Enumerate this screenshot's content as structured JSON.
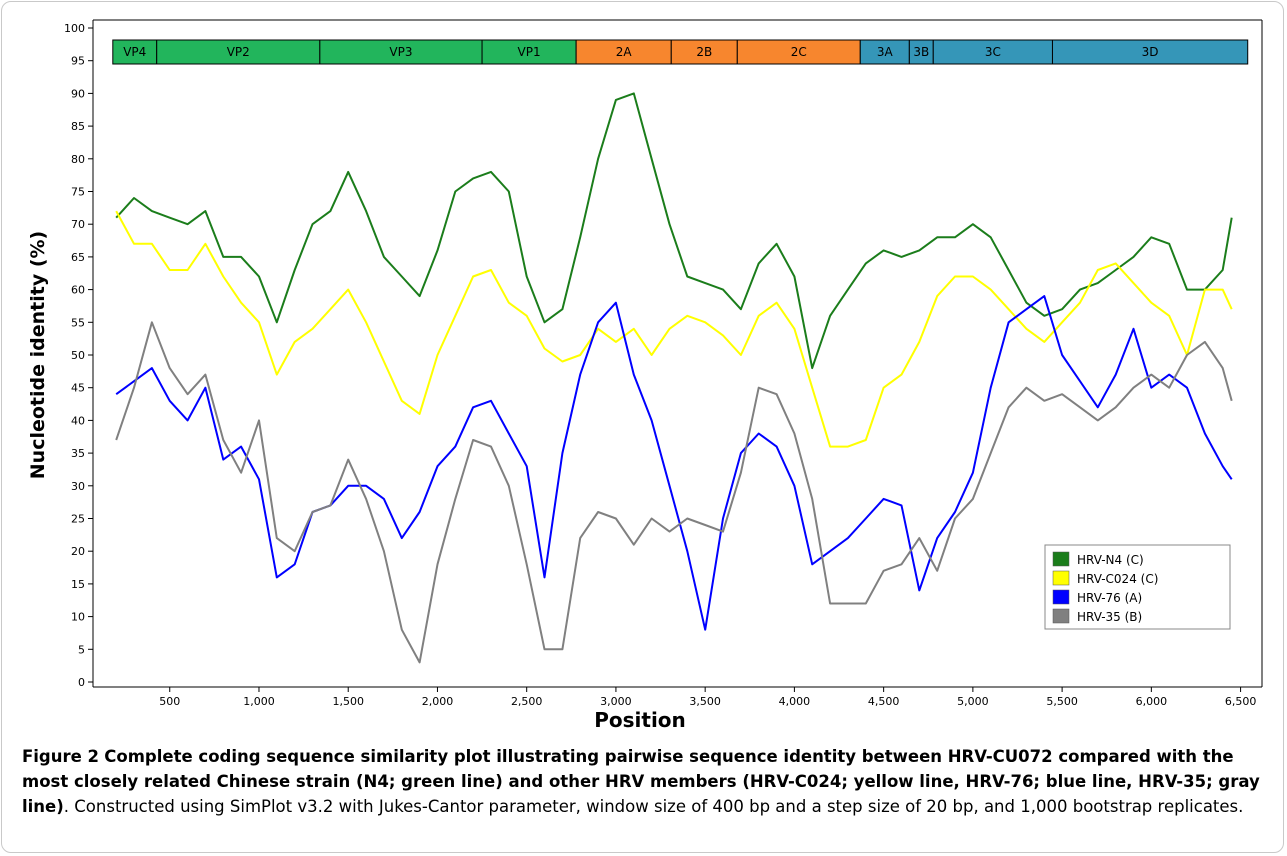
{
  "chart_data": {
    "type": "line",
    "xlabel": "Position",
    "ylabel": "Nucleotide identity (%)",
    "xlim": [
      70,
      6620
    ],
    "ylim": [
      0,
      100
    ],
    "xticks": [
      500,
      {
        "value": 1000,
        "label": "1,000"
      },
      {
        "value": 1500,
        "label": "1,500"
      },
      {
        "value": 2000,
        "label": "2,000"
      },
      {
        "value": 2500,
        "label": "2,500"
      },
      {
        "value": 3000,
        "label": "3,000"
      },
      {
        "value": 3500,
        "label": "3,500"
      },
      {
        "value": 4000,
        "label": "4,000"
      },
      {
        "value": 4500,
        "label": "4,500"
      },
      {
        "value": 5000,
        "label": "5,000"
      },
      {
        "value": 5500,
        "label": "5,500"
      },
      {
        "value": 6000,
        "label": "6,000"
      },
      {
        "value": 6500,
        "label": "6,500"
      }
    ],
    "yticks": [
      0,
      5,
      10,
      15,
      20,
      25,
      30,
      35,
      40,
      45,
      50,
      55,
      60,
      65,
      70,
      75,
      80,
      85,
      90,
      95,
      100
    ],
    "legend": "lower right",
    "regions": [
      {
        "name": "VP4",
        "start": 181,
        "end": 427,
        "color": "#22b55c"
      },
      {
        "name": "VP2",
        "start": 427,
        "end": 1341,
        "color": "#22b55c"
      },
      {
        "name": "VP3",
        "start": 1341,
        "end": 2250,
        "color": "#22b55c"
      },
      {
        "name": "VP1",
        "start": 2250,
        "end": 2777,
        "color": "#22b55c"
      },
      {
        "name": "2A",
        "start": 2777,
        "end": 3310,
        "color": "#f7862e"
      },
      {
        "name": "2B",
        "start": 3310,
        "end": 3680,
        "color": "#f7862e"
      },
      {
        "name": "2C",
        "start": 3680,
        "end": 4369,
        "color": "#f7862e"
      },
      {
        "name": "3A",
        "start": 4369,
        "end": 4644,
        "color": "#3596b8"
      },
      {
        "name": "3B",
        "start": 4644,
        "end": 4778,
        "color": "#3596b8"
      },
      {
        "name": "3C",
        "start": 4778,
        "end": 5446,
        "color": "#3596b8"
      },
      {
        "name": "3D",
        "start": 5446,
        "end": 6540,
        "color": "#3596b8"
      }
    ],
    "x": [
      200,
      300,
      400,
      500,
      600,
      700,
      800,
      900,
      1000,
      1100,
      1200,
      1300,
      1400,
      1500,
      1600,
      1700,
      1800,
      1900,
      2000,
      2100,
      2200,
      2300,
      2400,
      2500,
      2600,
      2700,
      2800,
      2900,
      3000,
      3100,
      3200,
      3300,
      3400,
      3500,
      3600,
      3700,
      3800,
      3900,
      4000,
      4100,
      4200,
      4300,
      4400,
      4500,
      4600,
      4700,
      4800,
      4900,
      5000,
      5100,
      5200,
      5300,
      5400,
      5500,
      5600,
      5700,
      5800,
      5900,
      6000,
      6100,
      6200,
      6300,
      6400,
      6450
    ],
    "series": [
      {
        "name": "HRV-N4 (C)",
        "color": "#1b7d1b",
        "values": [
          71,
          74,
          72,
          71,
          70,
          72,
          65,
          65,
          62,
          55,
          63,
          70,
          72,
          78,
          72,
          65,
          62,
          59,
          66,
          75,
          77,
          78,
          75,
          62,
          55,
          57,
          68,
          80,
          89,
          90,
          80,
          70,
          62,
          61,
          60,
          57,
          64,
          67,
          62,
          48,
          56,
          60,
          64,
          66,
          65,
          66,
          68,
          68,
          70,
          68,
          63,
          58,
          56,
          57,
          60,
          61,
          63,
          65,
          68,
          67,
          60,
          60,
          63,
          71
        ]
      },
      {
        "name": "HRV-C024 (C)",
        "color": "#ffff00",
        "values": [
          72,
          67,
          67,
          63,
          63,
          67,
          62,
          58,
          55,
          47,
          52,
          54,
          57,
          60,
          55,
          49,
          43,
          41,
          50,
          56,
          62,
          63,
          58,
          56,
          51,
          49,
          50,
          54,
          52,
          54,
          50,
          54,
          56,
          55,
          53,
          50,
          56,
          58,
          54,
          45,
          36,
          36,
          37,
          45,
          47,
          52,
          59,
          62,
          62,
          60,
          57,
          54,
          52,
          55,
          58,
          63,
          64,
          61,
          58,
          56,
          50,
          60,
          60,
          57
        ]
      },
      {
        "name": "HRV-76 (A)",
        "color": "#0000ff",
        "values": [
          44,
          46,
          48,
          43,
          40,
          45,
          34,
          36,
          31,
          16,
          18,
          26,
          27,
          30,
          30,
          28,
          22,
          26,
          33,
          36,
          42,
          43,
          38,
          33,
          16,
          35,
          47,
          55,
          58,
          47,
          40,
          30,
          20,
          8,
          25,
          35,
          38,
          36,
          30,
          18,
          20,
          22,
          25,
          28,
          27,
          14,
          22,
          26,
          32,
          45,
          55,
          57,
          59,
          50,
          46,
          42,
          47,
          54,
          45,
          47,
          45,
          38,
          33,
          31
        ]
      },
      {
        "name": "HRV-35 (B)",
        "color": "#808080",
        "values": [
          37,
          45,
          55,
          48,
          44,
          47,
          37,
          32,
          40,
          22,
          20,
          26,
          27,
          34,
          28,
          20,
          8,
          3,
          18,
          28,
          37,
          36,
          30,
          18,
          5,
          5,
          22,
          26,
          25,
          21,
          25,
          23,
          25,
          24,
          23,
          32,
          45,
          44,
          38,
          28,
          12,
          12,
          12,
          17,
          18,
          22,
          17,
          25,
          28,
          35,
          42,
          45,
          43,
          44,
          42,
          40,
          42,
          45,
          47,
          45,
          50,
          52,
          48,
          43
        ]
      }
    ]
  },
  "caption": {
    "label": "Figure 2",
    "title": "Complete coding sequence similarity plot illustrating pairwise sequence identity between HRV-CU072 compared with the most closely related Chinese strain (N4; green line) and other HRV members (HRV-C024; yellow line, HRV-76; blue line, HRV-35; gray line)",
    "text": ". Constructed using SimPlot v3.2 with Jukes-Cantor parameter, window size of 400 bp and a step size of 20 bp, and 1,000 bootstrap replicates."
  }
}
